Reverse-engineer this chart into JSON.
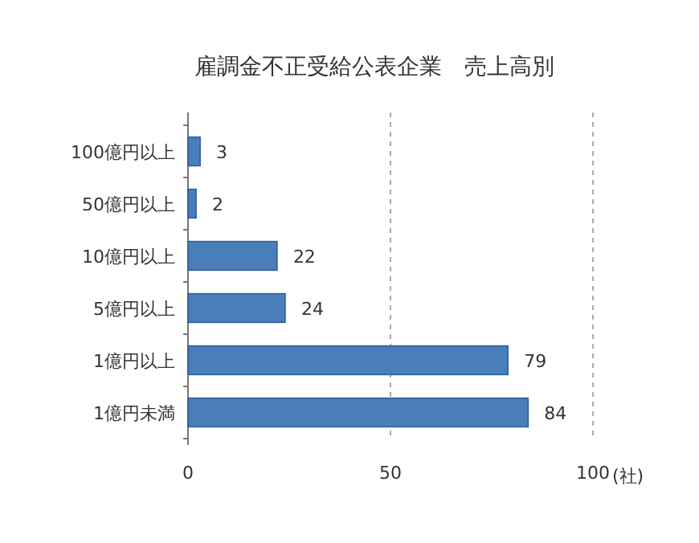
{
  "chart_data": {
    "type": "bar",
    "orientation": "horizontal",
    "title": "雇調金不正受給公表企業　売上高別",
    "xlabel": "(社)",
    "categories": [
      "100億円以上",
      "50億円以上",
      "10億円以上",
      "5億円以上",
      "1億円以上",
      "1億円未満"
    ],
    "values": [
      3,
      2,
      22,
      24,
      79,
      84
    ],
    "color": "#4a7ebb",
    "xlim": [
      0,
      100
    ],
    "xticks": [
      0,
      50,
      100
    ],
    "grid": "x",
    "data_labels": true
  }
}
